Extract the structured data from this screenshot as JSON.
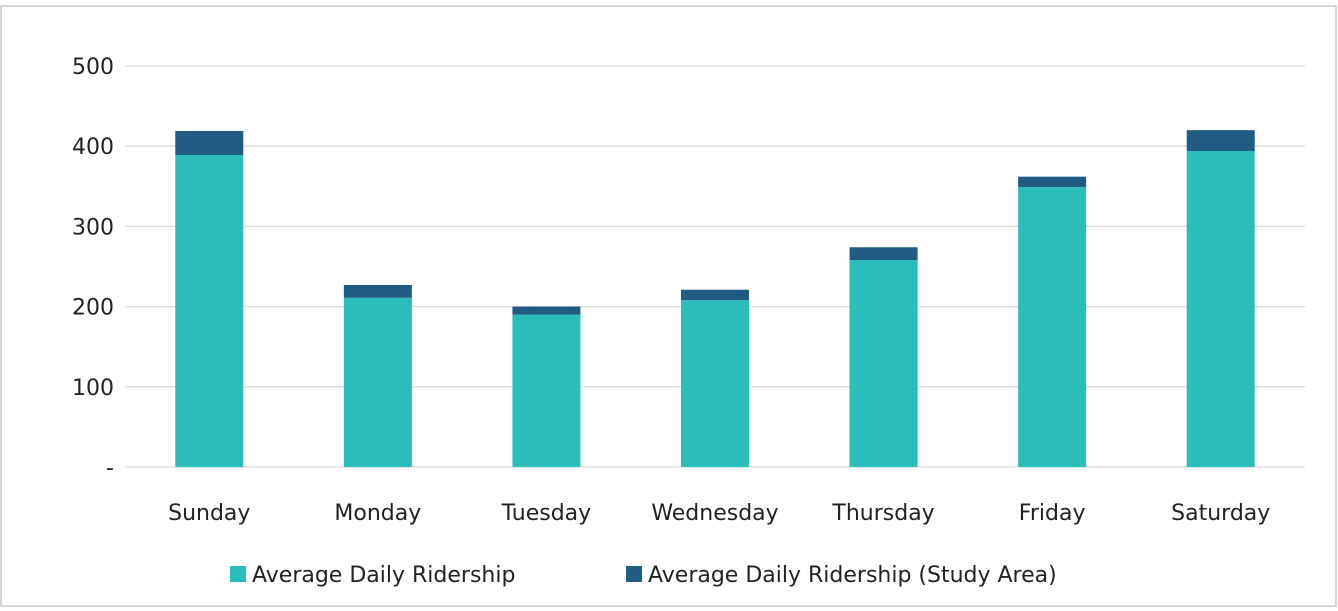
{
  "chart_data": {
    "type": "stacked_bar",
    "categories": [
      "Sunday",
      "Monday",
      "Tuesday",
      "Wednesday",
      "Thursday",
      "Friday",
      "Saturday"
    ],
    "series": [
      {
        "name": "Average Daily Ridership",
        "color": "#2bbdb9",
        "values": [
          389,
          211,
          190,
          208,
          258,
          349,
          394
        ]
      },
      {
        "name": "Average Daily Ridership (Study Area)",
        "color": "#1f5b82",
        "values": [
          30,
          16,
          10,
          13,
          16,
          13,
          26
        ]
      }
    ],
    "ylim": [
      0,
      500
    ],
    "yticks": [
      {
        "value": 0,
        "label": "-"
      },
      100,
      200,
      300,
      400,
      500
    ],
    "grid": true,
    "legend": "bottom"
  }
}
